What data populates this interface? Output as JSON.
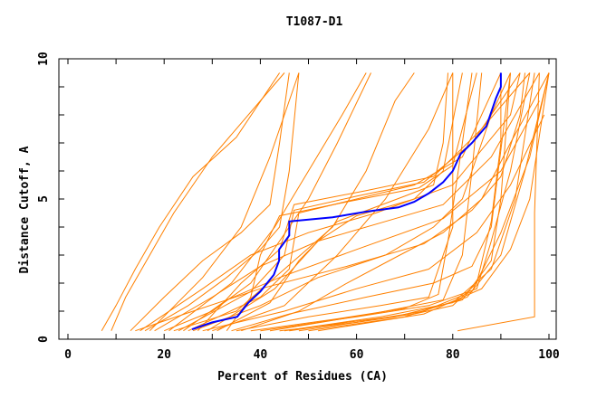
{
  "chart_data": {
    "type": "line",
    "title": "T1087-D1",
    "xlabel": "Percent of Residues (CA)",
    "ylabel": "Distance Cutoff, A",
    "xlim": [
      0,
      100
    ],
    "ylim": [
      0,
      10
    ],
    "x_ticks": [
      "0",
      "20",
      "40",
      "60",
      "80",
      "100"
    ],
    "y_ticks": [
      "0",
      "5",
      "10"
    ],
    "grid": false,
    "colors": {
      "highlight": "#0000ff",
      "others": "#ff8000"
    },
    "highlight_series": {
      "points": [
        [
          25.8,
          0.35
        ],
        [
          30,
          0.6
        ],
        [
          35.2,
          0.8
        ],
        [
          37.5,
          1.3
        ],
        [
          40,
          1.7
        ],
        [
          42.8,
          2.3
        ],
        [
          43.9,
          2.8
        ],
        [
          43.9,
          3.2
        ],
        [
          46,
          3.7
        ],
        [
          46,
          4.2
        ],
        [
          55,
          4.35
        ],
        [
          62,
          4.55
        ],
        [
          68.7,
          4.7
        ],
        [
          72,
          4.9
        ],
        [
          75,
          5.2
        ],
        [
          78,
          5.6
        ],
        [
          80,
          6.0
        ],
        [
          81.6,
          6.6
        ],
        [
          84,
          7.0
        ],
        [
          87,
          7.6
        ],
        [
          89,
          8.6
        ],
        [
          90,
          9.0
        ],
        [
          90,
          9.5
        ]
      ]
    },
    "series": [
      {
        "points": [
          [
            7,
            0.3
          ],
          [
            10,
            1.2
          ],
          [
            14,
            2.5
          ],
          [
            19,
            4
          ],
          [
            26,
            5.8
          ],
          [
            35,
            7.2
          ],
          [
            44,
            9.5
          ]
        ]
      },
      {
        "points": [
          [
            9,
            0.3
          ],
          [
            12,
            1.5
          ],
          [
            17,
            3
          ],
          [
            22,
            4.5
          ],
          [
            30,
            6.5
          ],
          [
            40,
            8.5
          ],
          [
            45,
            9.5
          ]
        ]
      },
      {
        "points": [
          [
            13,
            0.3
          ],
          [
            20,
            1.5
          ],
          [
            28,
            2.8
          ],
          [
            36,
            3.8
          ],
          [
            42,
            4.8
          ],
          [
            44,
            7
          ],
          [
            46,
            9.5
          ]
        ]
      },
      {
        "points": [
          [
            16,
            0.3
          ],
          [
            25,
            1.2
          ],
          [
            33,
            2.2
          ],
          [
            40,
            3.2
          ],
          [
            44,
            4
          ],
          [
            46,
            6
          ],
          [
            48,
            9.5
          ]
        ]
      },
      {
        "points": [
          [
            20,
            0.3
          ],
          [
            30,
            1
          ],
          [
            38,
            2
          ],
          [
            44,
            3.5
          ],
          [
            50,
            5
          ],
          [
            56,
            7
          ],
          [
            63,
            9.5
          ]
        ]
      },
      {
        "points": [
          [
            22,
            0.3
          ],
          [
            35,
            1
          ],
          [
            45,
            2.5
          ],
          [
            55,
            4
          ],
          [
            62,
            6
          ],
          [
            68,
            8.5
          ],
          [
            72,
            9.5
          ]
        ]
      },
      {
        "points": [
          [
            30,
            0.3
          ],
          [
            45,
            1.2
          ],
          [
            56,
            3
          ],
          [
            66,
            5
          ],
          [
            75,
            7.5
          ],
          [
            80,
            9.5
          ]
        ]
      },
      {
        "points": [
          [
            35,
            0.3
          ],
          [
            50,
            0.8
          ],
          [
            65,
            1.2
          ],
          [
            75,
            1.5
          ],
          [
            80,
            4
          ],
          [
            80,
            9.5
          ]
        ]
      },
      {
        "points": [
          [
            40,
            0.3
          ],
          [
            60,
            0.8
          ],
          [
            75,
            1.2
          ],
          [
            85,
            1.8
          ],
          [
            88,
            3.5
          ],
          [
            92,
            6
          ],
          [
            96,
            9.5
          ]
        ]
      },
      {
        "points": [
          [
            45,
            0.3
          ],
          [
            65,
            0.8
          ],
          [
            80,
            1.3
          ],
          [
            88,
            2.5
          ],
          [
            93,
            5
          ],
          [
            97,
            9.5
          ]
        ]
      },
      {
        "points": [
          [
            50,
            0.3
          ],
          [
            70,
            0.8
          ],
          [
            83,
            1.5
          ],
          [
            90,
            3
          ],
          [
            95,
            6
          ],
          [
            100,
            9.5
          ]
        ]
      },
      {
        "points": [
          [
            28,
            0.3
          ],
          [
            45,
            1
          ],
          [
            60,
            1.8
          ],
          [
            75,
            2.5
          ],
          [
            85,
            3.8
          ],
          [
            92,
            5.5
          ],
          [
            99,
            8
          ]
        ]
      },
      {
        "points": [
          [
            25,
            0.3
          ],
          [
            40,
            1.5
          ],
          [
            46,
            2.5
          ],
          [
            48,
            4.5
          ],
          [
            60,
            5
          ],
          [
            72,
            5.5
          ],
          [
            82,
            6.5
          ],
          [
            90,
            9.5
          ]
        ]
      },
      {
        "points": [
          [
            23,
            0.3
          ],
          [
            38,
            1.7
          ],
          [
            45,
            3
          ],
          [
            47,
            4.6
          ],
          [
            60,
            5.1
          ],
          [
            74,
            5.6
          ],
          [
            84,
            7
          ],
          [
            94,
            9.5
          ]
        ]
      },
      {
        "points": [
          [
            27,
            0.3
          ],
          [
            36,
            2
          ],
          [
            44,
            3.2
          ],
          [
            47,
            4.8
          ],
          [
            62,
            5.3
          ],
          [
            76,
            5.8
          ],
          [
            86,
            7.5
          ],
          [
            96,
            9.5
          ]
        ]
      },
      {
        "points": [
          [
            33,
            0.3
          ],
          [
            38,
            1.5
          ],
          [
            40,
            3
          ],
          [
            44,
            4.4
          ],
          [
            58,
            4.9
          ],
          [
            73,
            5.4
          ],
          [
            80,
            6.2
          ],
          [
            85,
            9.5
          ]
        ]
      },
      {
        "points": [
          [
            18,
            0.3
          ],
          [
            30,
            1.5
          ],
          [
            40,
            2.6
          ],
          [
            52,
            3.5
          ],
          [
            66,
            4.2
          ],
          [
            78,
            4.8
          ],
          [
            88,
            6.5
          ],
          [
            98,
            9.5
          ]
        ]
      },
      {
        "points": [
          [
            15,
            0.3
          ],
          [
            28,
            1.8
          ],
          [
            38,
            3
          ],
          [
            50,
            3.8
          ],
          [
            64,
            4.5
          ],
          [
            80,
            5.5
          ],
          [
            92,
            8
          ],
          [
            94,
            9.5
          ]
        ]
      },
      {
        "points": [
          [
            52,
            0.3
          ],
          [
            74,
            0.9
          ],
          [
            86,
            1.8
          ],
          [
            92,
            3.2
          ],
          [
            96,
            5
          ],
          [
            100,
            9.5
          ]
        ]
      },
      {
        "points": [
          [
            81,
            0.3
          ],
          [
            97,
            0.8
          ],
          [
            97,
            4.5
          ],
          [
            98,
            9.5
          ]
        ]
      },
      {
        "points": [
          [
            42,
            0.3
          ],
          [
            63,
            0.9
          ],
          [
            78,
            1.4
          ],
          [
            82,
            3
          ],
          [
            84,
            6
          ],
          [
            86,
            9.5
          ]
        ]
      },
      {
        "points": [
          [
            38,
            0.3
          ],
          [
            55,
            0.7
          ],
          [
            70,
            1.1
          ],
          [
            77,
            1.6
          ],
          [
            79,
            3.5
          ],
          [
            82,
            7
          ],
          [
            84,
            9.5
          ]
        ]
      },
      {
        "points": [
          [
            26,
            0.3
          ],
          [
            40,
            1.2
          ],
          [
            52,
            2.2
          ],
          [
            66,
            3
          ],
          [
            76,
            4
          ],
          [
            82,
            5
          ],
          [
            88,
            8
          ],
          [
            92,
            9.5
          ]
        ]
      },
      {
        "points": [
          [
            36,
            0.3
          ],
          [
            48,
            1
          ],
          [
            58,
            2
          ],
          [
            69,
            3
          ],
          [
            78,
            3.8
          ],
          [
            86,
            5
          ],
          [
            92,
            7
          ],
          [
            100,
            9.5
          ]
        ]
      },
      {
        "points": [
          [
            21,
            0.3
          ],
          [
            34,
            2
          ],
          [
            43,
            4
          ],
          [
            50,
            6
          ],
          [
            57,
            8
          ],
          [
            62,
            9.5
          ]
        ]
      },
      {
        "points": [
          [
            17,
            0.3
          ],
          [
            28,
            2.2
          ],
          [
            36,
            4
          ],
          [
            42,
            6.5
          ],
          [
            48,
            9.5
          ]
        ]
      },
      {
        "points": [
          [
            48,
            0.3
          ],
          [
            68,
            0.8
          ],
          [
            82,
            1.4
          ],
          [
            88,
            2.8
          ],
          [
            90,
            5
          ],
          [
            92,
            9.5
          ]
        ]
      },
      {
        "points": [
          [
            31,
            0.3
          ],
          [
            42,
            1.3
          ],
          [
            48,
            2.8
          ],
          [
            56,
            4.2
          ],
          [
            70,
            5.1
          ],
          [
            76,
            5.5
          ],
          [
            78,
            7
          ],
          [
            79,
            9.5
          ]
        ]
      },
      {
        "points": [
          [
            44,
            0.3
          ],
          [
            60,
            0.6
          ],
          [
            74,
            1
          ],
          [
            84,
            1.7
          ],
          [
            90,
            3.8
          ],
          [
            96,
            6.5
          ],
          [
            100,
            9.5
          ]
        ]
      },
      {
        "points": [
          [
            24,
            0.3
          ],
          [
            33,
            1.4
          ],
          [
            44,
            2.2
          ],
          [
            60,
            3.2
          ],
          [
            78,
            4.3
          ],
          [
            90,
            6
          ],
          [
            98,
            8.5
          ]
        ]
      },
      {
        "points": [
          [
            14,
            0.3
          ],
          [
            26,
            1
          ],
          [
            40,
            1.8
          ],
          [
            58,
            2.6
          ],
          [
            74,
            3.4
          ],
          [
            84,
            4.6
          ],
          [
            90,
            5.8
          ],
          [
            94,
            8
          ],
          [
            95,
            9.5
          ]
        ]
      },
      {
        "points": [
          [
            34,
            0.3
          ],
          [
            46,
            0.9
          ],
          [
            62,
            1.5
          ],
          [
            76,
            2
          ],
          [
            84,
            2.6
          ],
          [
            88,
            4
          ],
          [
            92,
            9.5
          ]
        ]
      },
      {
        "points": [
          [
            29,
            0.3
          ],
          [
            43,
            1.8
          ],
          [
            52,
            3.5
          ],
          [
            60,
            4.4
          ],
          [
            72,
            5
          ],
          [
            78,
            6
          ],
          [
            82,
            9.5
          ]
        ]
      },
      {
        "points": [
          [
            46,
            0.3
          ],
          [
            58,
            0.6
          ],
          [
            72,
            0.9
          ],
          [
            80,
            1.2
          ],
          [
            85,
            2
          ],
          [
            88,
            4.2
          ],
          [
            90,
            7
          ],
          [
            90,
            9.5
          ]
        ]
      }
    ]
  }
}
